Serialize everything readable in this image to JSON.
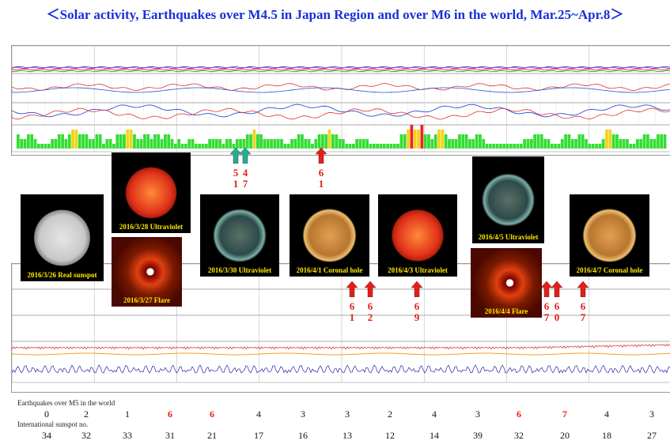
{
  "title": "＜Solar activity, Earthquakes over M4.5 in Japan Region and over M6 in the world, Mar.25~Apr.8＞",
  "colors": {
    "title": "#1a2fd8",
    "highlight": "#e0201a",
    "arrow_red": "#e0201a",
    "arrow_teal": "#19b39a",
    "caption": "#ffea00",
    "kp_green": "#33dd33",
    "kp_yellow": "#f2d21a",
    "kp_red": "#ee2222"
  },
  "images": [
    {
      "caption": "2016/3/26 Real sunspot",
      "kind": "white-sun"
    },
    {
      "caption": "2016/3/28 Ultraviolet",
      "kind": "red-sun"
    },
    {
      "caption": "2016/3/27 Flare",
      "kind": "coronagraph"
    },
    {
      "caption": "2016/3/30 Ultraviolet",
      "kind": "teal-sun"
    },
    {
      "caption": "2016/4/1  Coronal hole",
      "kind": "gold-sun"
    },
    {
      "caption": "2016/4/3 Ultraviolet",
      "kind": "red-sun"
    },
    {
      "caption": "2016/4/5 Ultraviolet",
      "kind": "teal-sun"
    },
    {
      "caption": "2016/4/4 Flare",
      "kind": "coronagraph"
    },
    {
      "caption": "2016/4/7  Coronal hole",
      "kind": "gold-sun"
    }
  ],
  "markers": [
    {
      "top": "5",
      "bottom": "1",
      "color": "teal"
    },
    {
      "top": "4",
      "bottom": "7",
      "color": "teal"
    },
    {
      "top": "6",
      "bottom": "1",
      "color": "red"
    },
    {
      "top": "6",
      "bottom": "1",
      "color": "red"
    },
    {
      "top": "6",
      "bottom": "2",
      "color": "red"
    },
    {
      "top": "6",
      "bottom": "9",
      "color": "red"
    },
    {
      "top": "6",
      "bottom": "7",
      "color": "red"
    },
    {
      "top": "6",
      "bottom": "0",
      "color": "red"
    },
    {
      "top": "6",
      "bottom": "7",
      "color": "red"
    }
  ],
  "chart_data": {
    "type": "table",
    "title": "＜Solar activity, Earthquakes over M4.5 in Japan Region and over M6 in the world, Mar.25~Apr.8＞",
    "rows": [
      {
        "label": "Earthquakes over M5 in the world",
        "values": [
          "0",
          "2",
          "1",
          "6",
          "6",
          "4",
          "3",
          "3",
          "2",
          "4",
          "3",
          "6",
          "7",
          "4",
          "3"
        ],
        "highlight": [
          false,
          false,
          false,
          true,
          true,
          false,
          false,
          false,
          false,
          false,
          false,
          true,
          true,
          false,
          false
        ]
      },
      {
        "label": "International sunspot no.",
        "values": [
          "34",
          "32",
          "33",
          "31",
          "21",
          "17",
          "16",
          "13",
          "12",
          "14",
          "39",
          "32",
          "20",
          "18",
          "27"
        ]
      }
    ],
    "kp_index": [
      3,
      2,
      2,
      3,
      3,
      2,
      1,
      1,
      1,
      1,
      2,
      2,
      3,
      3,
      2,
      3,
      4,
      4,
      3,
      3,
      3,
      2,
      2,
      3,
      3,
      1,
      2,
      2,
      1,
      3,
      3,
      3,
      4,
      4,
      3,
      2,
      2,
      3,
      3,
      2,
      3,
      3,
      2,
      3,
      3,
      2,
      1,
      2,
      1,
      1,
      2,
      2,
      1,
      1,
      1,
      1,
      2,
      2,
      2,
      2,
      1,
      2,
      2,
      1,
      2,
      2,
      2,
      3,
      3,
      4,
      3,
      3,
      2,
      2,
      2,
      2,
      2,
      2,
      1,
      1,
      2,
      2,
      3,
      3,
      2,
      2,
      1,
      2,
      3,
      3,
      3,
      4,
      3,
      3,
      2,
      2,
      1,
      1,
      1,
      2,
      2,
      2,
      2,
      1,
      1,
      1,
      1,
      1,
      1,
      1,
      1,
      1,
      3,
      3,
      4,
      5,
      4,
      4,
      5,
      3,
      3,
      2,
      3,
      4,
      4,
      3,
      2,
      2,
      2,
      3,
      3,
      3,
      2,
      2,
      3,
      3,
      2,
      1,
      1,
      1,
      1,
      1,
      1,
      1,
      1,
      1,
      1,
      1,
      2,
      2,
      2,
      3,
      3,
      3,
      2,
      2,
      1,
      1,
      1,
      2,
      3,
      3,
      2,
      2,
      3,
      3,
      2,
      1,
      1,
      1,
      1,
      2,
      4,
      4,
      3,
      3,
      2,
      2,
      2,
      1,
      1,
      2,
      2,
      3,
      3,
      2,
      2,
      3,
      3,
      3
    ],
    "kp_colors": {
      "storm": 5,
      "active": 4
    }
  }
}
